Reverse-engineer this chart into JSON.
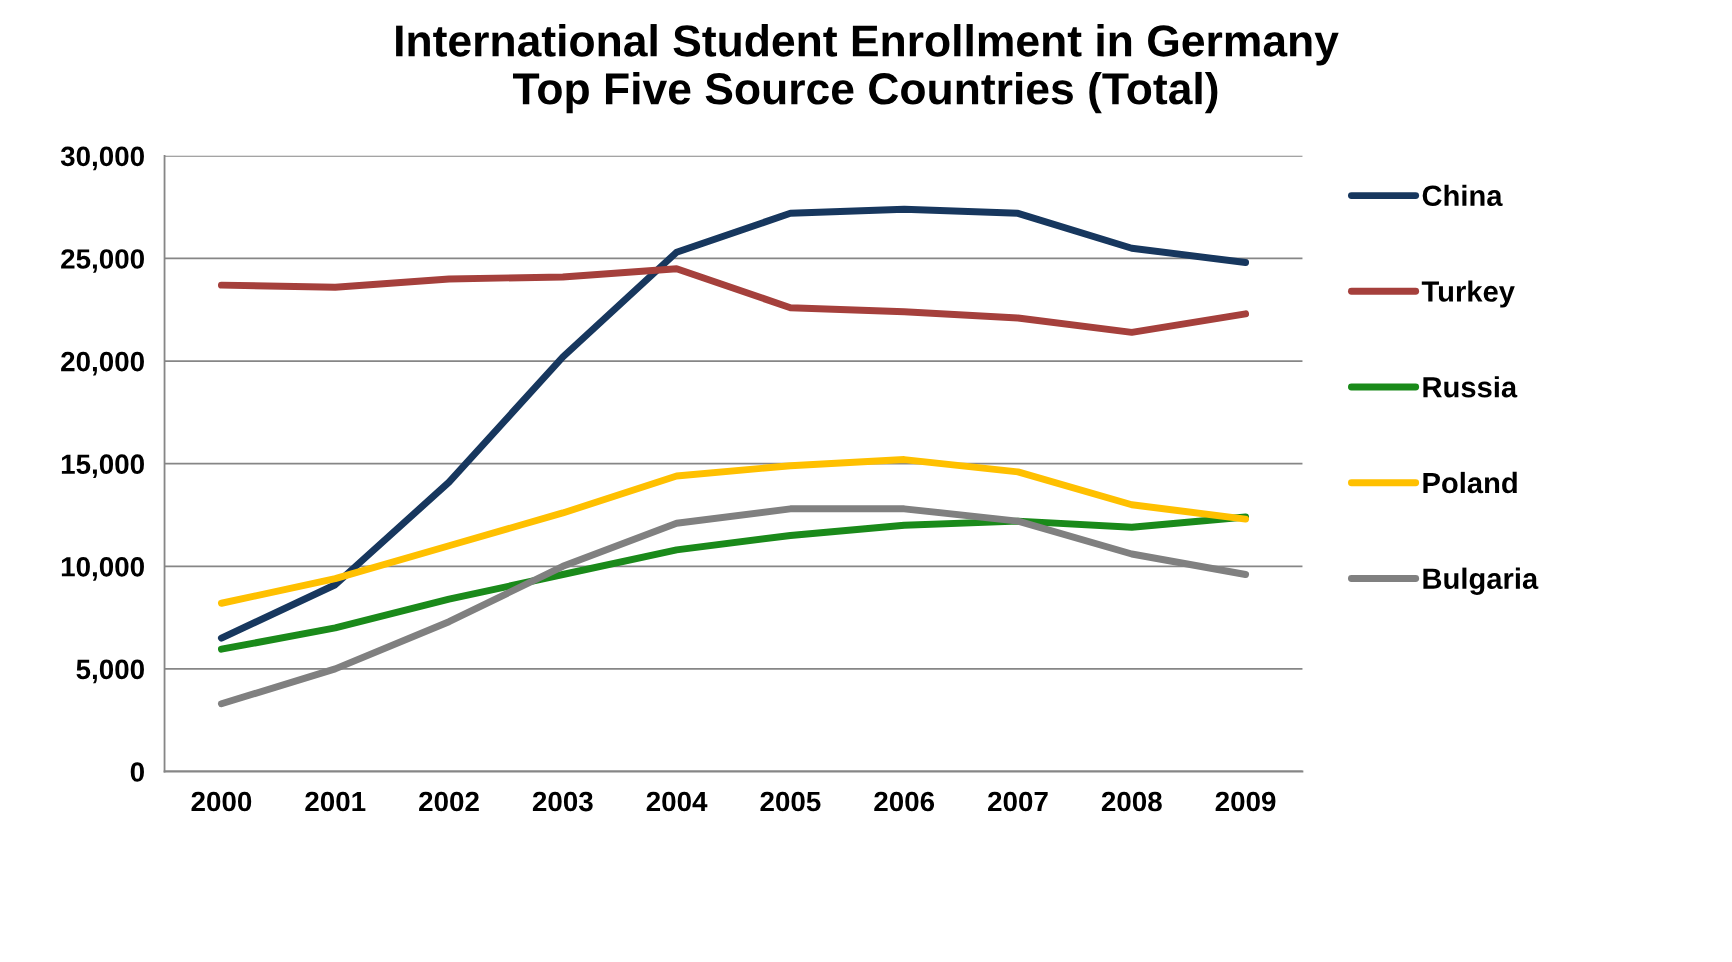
{
  "chart_data": {
    "type": "line",
    "title": "International Student Enrollment in Germany\nTop Five Source Countries (Total)",
    "categories": [
      "2000",
      "2001",
      "2002",
      "2003",
      "2004",
      "2005",
      "2006",
      "2007",
      "2008",
      "2009"
    ],
    "series": [
      {
        "name": "China",
        "color": "#17375e",
        "values": [
          6500,
          9100,
          14100,
          20200,
          25300,
          27200,
          27400,
          27200,
          25500,
          24800
        ]
      },
      {
        "name": "Turkey",
        "color": "#a5403c",
        "values": [
          23700,
          23600,
          24000,
          24100,
          24500,
          22600,
          22400,
          22100,
          21400,
          22300
        ]
      },
      {
        "name": "Russia",
        "color": "#1a8a1a",
        "values": [
          5960,
          7000,
          8400,
          9600,
          10800,
          11500,
          12000,
          12200,
          11900,
          12400
        ]
      },
      {
        "name": "Poland",
        "color": "#ffc000",
        "values": [
          8200,
          9400,
          11000,
          12600,
          14400,
          14900,
          15200,
          14600,
          13000,
          12300
        ]
      },
      {
        "name": "Bulgaria",
        "color": "#808080",
        "values": [
          3300,
          5000,
          7300,
          10000,
          12100,
          12800,
          12800,
          12200,
          10600,
          9600
        ]
      }
    ],
    "ylim": [
      0,
      30000
    ],
    "yticks": [
      {
        "value": 0,
        "label": "0"
      },
      {
        "value": 5000,
        "label": "5,000"
      },
      {
        "value": 10000,
        "label": "10,000"
      },
      {
        "value": 15000,
        "label": "15,000"
      },
      {
        "value": 20000,
        "label": "20,000"
      },
      {
        "value": 25000,
        "label": "25,000"
      },
      {
        "value": 30000,
        "label": "30,000"
      }
    ],
    "grid": "y",
    "legend": "right",
    "marker": "none",
    "line_style": "solid"
  }
}
